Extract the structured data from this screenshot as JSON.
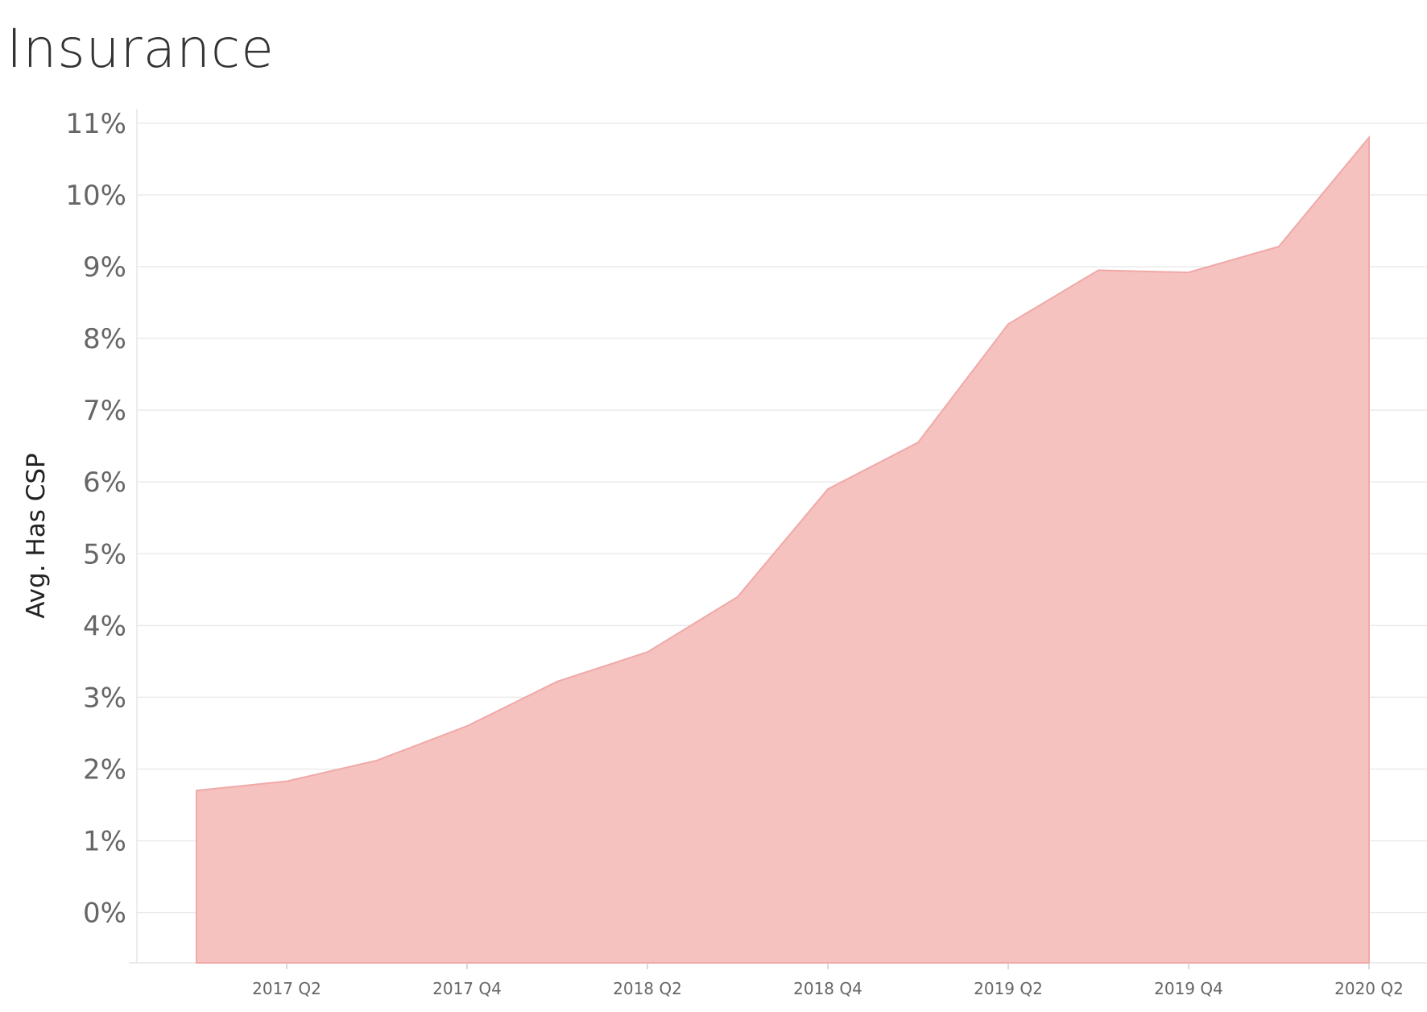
{
  "title": "Insurance",
  "chart_data": {
    "type": "area",
    "title": "Insurance",
    "xlabel": "",
    "ylabel": "Avg. Has CSP",
    "ylim": [
      -0.7,
      11.2
    ],
    "y_ticks": [
      "0%",
      "1%",
      "2%",
      "3%",
      "4%",
      "5%",
      "6%",
      "7%",
      "8%",
      "9%",
      "10%",
      "11%"
    ],
    "x_tick_labels": [
      "2017 Q2",
      "2017 Q4",
      "2018 Q2",
      "2018 Q4",
      "2019 Q2",
      "2019 Q4",
      "2020 Q2"
    ],
    "x": [
      "2017 Q1",
      "2017 Q2",
      "2017 Q3",
      "2017 Q4",
      "2018 Q1",
      "2018 Q2",
      "2018 Q3",
      "2018 Q4",
      "2019 Q1",
      "2019 Q2",
      "2019 Q3",
      "2019 Q4",
      "2020 Q1",
      "2020 Q2"
    ],
    "series": [
      {
        "values": [
          1.7,
          1.83,
          2.12,
          2.6,
          3.22,
          3.63,
          4.4,
          5.9,
          6.55,
          8.2,
          8.95,
          8.92,
          9.28,
          10.8
        ]
      }
    ],
    "fill_color": "#f5c2c0",
    "line_color": "#f0a9a7",
    "grid": true,
    "gridline_color": "#ebebeb"
  }
}
